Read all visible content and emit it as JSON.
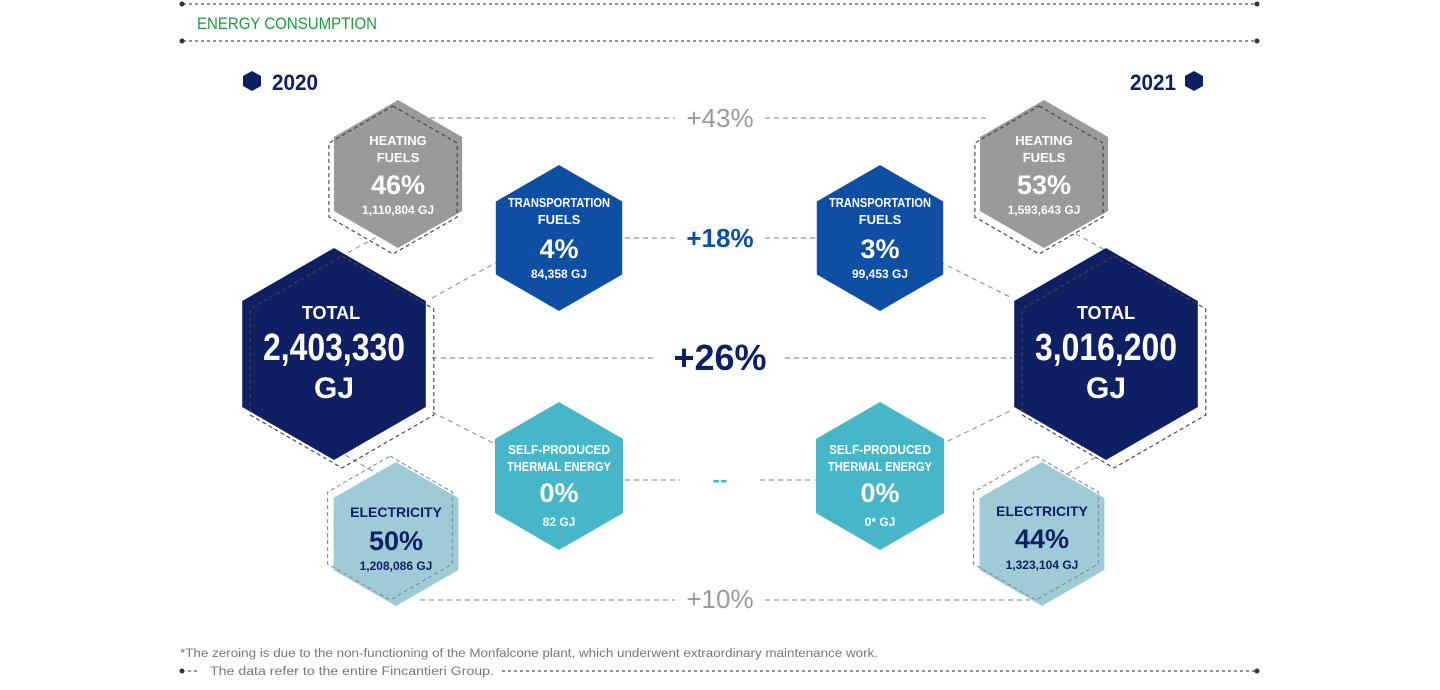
{
  "header": {
    "title": "ENERGY CONSUMPTION"
  },
  "colors": {
    "heating": "#9a9a9a",
    "transport": "#0e4fa3",
    "total": "#0e1f63",
    "thermal": "#47b6c8",
    "electricity": "#9fcbd6",
    "title_green": "#1e9a3c",
    "change_gray": "#9a9a9a",
    "change_blue": "#0e4fa3",
    "change_dark": "#0e1f63",
    "change_teal": "#47b6c8",
    "dash": "#9b9b9b"
  },
  "years": {
    "left": "2020",
    "right": "2021"
  },
  "left": {
    "total": {
      "label": "TOTAL",
      "value": "2,403,330",
      "unit": "GJ"
    },
    "heating": {
      "label1": "HEATING",
      "label2": "FUELS",
      "percent": "46%",
      "amount": "1,110,804 GJ"
    },
    "transport": {
      "label1": "TRANSPORTATION",
      "label2": "FUELS",
      "percent": "4%",
      "amount": "84,358 GJ"
    },
    "thermal": {
      "label1": "SELF-PRODUCED",
      "label2": "THERMAL ENERGY",
      "percent": "0%",
      "amount": "82 GJ"
    },
    "electricity": {
      "label": "ELECTRICITY",
      "percent": "50%",
      "amount": "1,208,086 GJ"
    }
  },
  "right": {
    "total": {
      "label": "TOTAL",
      "value": "3,016,200",
      "unit": "GJ"
    },
    "heating": {
      "label1": "HEATING",
      "label2": "FUELS",
      "percent": "53%",
      "amount": "1,593,643 GJ"
    },
    "transport": {
      "label1": "TRANSPORTATION",
      "label2": "FUELS",
      "percent": "3%",
      "amount": "99,453 GJ"
    },
    "thermal": {
      "label1": "SELF-PRODUCED",
      "label2": "THERMAL ENERGY",
      "percent": "0%",
      "amount": "0* GJ"
    },
    "electricity": {
      "label": "ELECTRICITY",
      "percent": "44%",
      "amount": "1,323,104 GJ"
    }
  },
  "changes": {
    "heating": "+43%",
    "transport": "+18%",
    "total": "+26%",
    "thermal": "--",
    "electricity": "+10%"
  },
  "footer": {
    "footnote": "*The zeroing is due to the non-functioning of the Monfalcone plant, which underwent extraordinary maintenance work.",
    "note": "The data refer to the entire Fincantieri Group."
  }
}
